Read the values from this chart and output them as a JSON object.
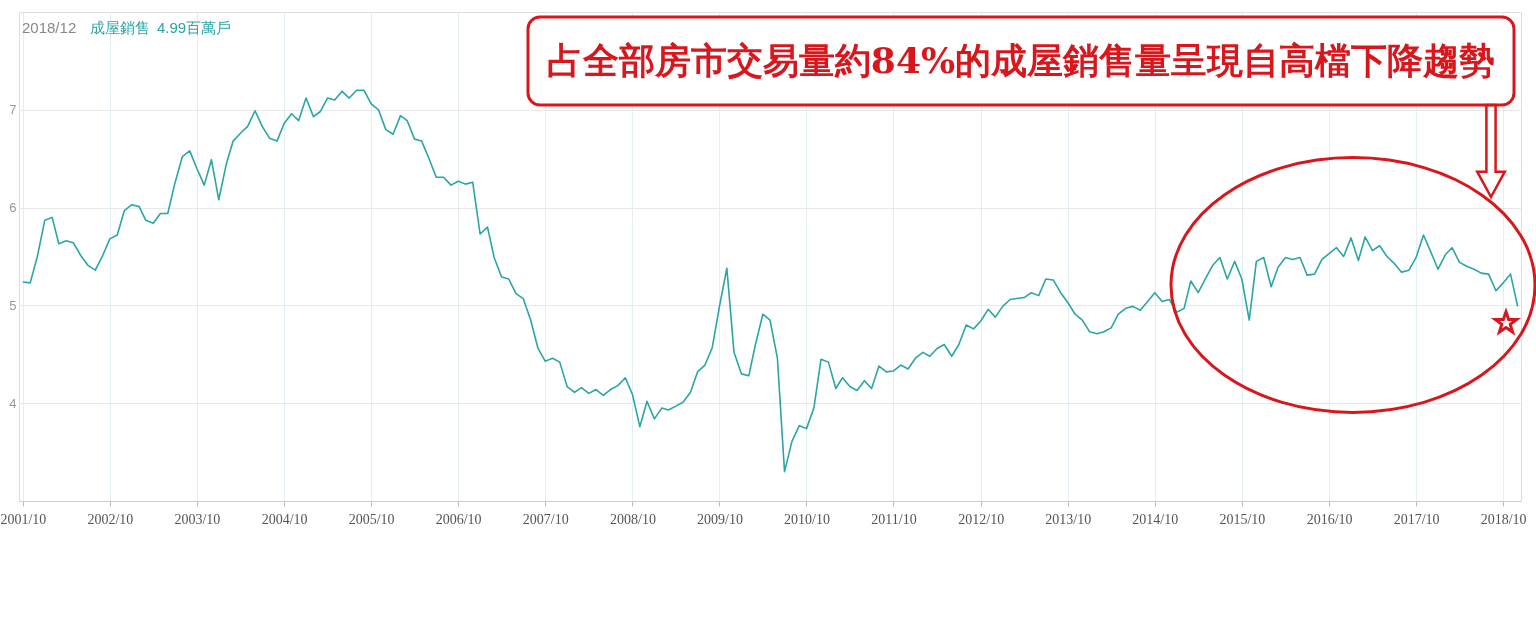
{
  "chart_data": {
    "type": "line",
    "annotations": [
      "2018/12",
      "4.99百萬戶",
      "占全部房市交易量約84%的成屋銷售量呈現自高檔下降趨勢"
    ],
    "x": [
      "2001-10",
      "2001-11",
      "2001-12",
      "2002-01",
      "2002-02",
      "2002-03",
      "2002-04",
      "2002-05",
      "2002-06",
      "2002-07",
      "2002-08",
      "2002-09",
      "2002-10",
      "2002-11",
      "2002-12",
      "2003-01",
      "2003-02",
      "2003-03",
      "2003-04",
      "2003-05",
      "2003-06",
      "2003-07",
      "2003-08",
      "2003-09",
      "2003-10",
      "2003-11",
      "2003-12",
      "2004-01",
      "2004-02",
      "2004-03",
      "2004-04",
      "2004-05",
      "2004-06",
      "2004-07",
      "2004-08",
      "2004-09",
      "2004-10",
      "2004-11",
      "2004-12",
      "2005-01",
      "2005-02",
      "2005-03",
      "2005-04",
      "2005-05",
      "2005-06",
      "2005-07",
      "2005-08",
      "2005-09",
      "2005-10",
      "2005-11",
      "2005-12",
      "2006-01",
      "2006-02",
      "2006-03",
      "2006-04",
      "2006-05",
      "2006-06",
      "2006-07",
      "2006-08",
      "2006-09",
      "2006-10",
      "2006-11",
      "2006-12",
      "2007-01",
      "2007-02",
      "2007-03",
      "2007-04",
      "2007-05",
      "2007-06",
      "2007-07",
      "2007-08",
      "2007-09",
      "2007-10",
      "2007-11",
      "2007-12",
      "2008-01",
      "2008-02",
      "2008-03",
      "2008-04",
      "2008-05",
      "2008-06",
      "2008-07",
      "2008-08",
      "2008-09",
      "2008-10",
      "2008-11",
      "2008-12",
      "2009-01",
      "2009-02",
      "2009-03",
      "2009-04",
      "2009-05",
      "2009-06",
      "2009-07",
      "2009-08",
      "2009-09",
      "2009-10",
      "2009-11",
      "2009-12",
      "2010-01",
      "2010-02",
      "2010-03",
      "2010-04",
      "2010-05",
      "2010-06",
      "2010-07",
      "2010-08",
      "2010-09",
      "2010-10",
      "2010-11",
      "2010-12",
      "2011-01",
      "2011-02",
      "2011-03",
      "2011-04",
      "2011-05",
      "2011-06",
      "2011-07",
      "2011-08",
      "2011-09",
      "2011-10",
      "2011-11",
      "2011-12",
      "2012-01",
      "2012-02",
      "2012-03",
      "2012-04",
      "2012-05",
      "2012-06",
      "2012-07",
      "2012-08",
      "2012-09",
      "2012-10",
      "2012-11",
      "2012-12",
      "2013-01",
      "2013-02",
      "2013-03",
      "2013-04",
      "2013-05",
      "2013-06",
      "2013-07",
      "2013-08",
      "2013-09",
      "2013-10",
      "2013-11",
      "2013-12",
      "2014-01",
      "2014-02",
      "2014-03",
      "2014-04",
      "2014-05",
      "2014-06",
      "2014-07",
      "2014-08",
      "2014-09",
      "2014-10",
      "2014-11",
      "2014-12",
      "2015-01",
      "2015-02",
      "2015-03",
      "2015-04",
      "2015-05",
      "2015-06",
      "2015-07",
      "2015-08",
      "2015-09",
      "2015-10",
      "2015-11",
      "2015-12",
      "2016-01",
      "2016-02",
      "2016-03",
      "2016-04",
      "2016-05",
      "2016-06",
      "2016-07",
      "2016-08",
      "2016-09",
      "2016-10",
      "2016-11",
      "2016-12",
      "2017-01",
      "2017-02",
      "2017-03",
      "2017-04",
      "2017-05",
      "2017-06",
      "2017-07",
      "2017-08",
      "2017-09",
      "2017-10",
      "2017-11",
      "2017-12",
      "2018-01",
      "2018-02",
      "2018-03",
      "2018-04",
      "2018-05",
      "2018-06",
      "2018-07",
      "2018-08",
      "2018-09",
      "2018-10",
      "2018-11",
      "2018-12"
    ],
    "series": [
      {
        "name": "成屋銷售",
        "color": "#2ba5a5",
        "values": [
          5.24,
          5.23,
          5.5,
          5.87,
          5.9,
          5.63,
          5.66,
          5.64,
          5.51,
          5.41,
          5.36,
          5.51,
          5.68,
          5.72,
          5.97,
          6.03,
          6.01,
          5.87,
          5.84,
          5.94,
          5.94,
          6.25,
          6.52,
          6.58,
          6.4,
          6.23,
          6.49,
          6.08,
          6.44,
          6.68,
          6.76,
          6.83,
          6.99,
          6.83,
          6.71,
          6.68,
          6.86,
          6.96,
          6.89,
          7.12,
          6.93,
          6.98,
          7.12,
          7.1,
          7.19,
          7.12,
          7.2,
          7.2,
          7.06,
          7.0,
          6.8,
          6.75,
          6.94,
          6.89,
          6.7,
          6.68,
          6.5,
          6.31,
          6.31,
          6.23,
          6.27,
          6.24,
          6.26,
          5.73,
          5.8,
          5.49,
          5.29,
          5.27,
          5.12,
          5.07,
          4.85,
          4.56,
          4.43,
          4.46,
          4.42,
          4.17,
          4.11,
          4.16,
          4.1,
          4.14,
          4.08,
          4.14,
          4.18,
          4.26,
          4.09,
          3.76,
          4.02,
          3.84,
          3.95,
          3.93,
          3.97,
          4.01,
          4.11,
          4.32,
          4.39,
          4.57,
          4.99,
          5.38,
          4.52,
          4.3,
          4.28,
          4.6,
          4.91,
          4.85,
          4.46,
          3.3,
          3.61,
          3.77,
          3.74,
          3.95,
          4.45,
          4.42,
          4.15,
          4.26,
          4.17,
          4.13,
          4.23,
          4.15,
          4.38,
          4.32,
          4.33,
          4.39,
          4.35,
          4.46,
          4.52,
          4.48,
          4.56,
          4.6,
          4.48,
          4.6,
          4.8,
          4.76,
          4.84,
          4.96,
          4.88,
          4.99,
          5.06,
          5.07,
          5.08,
          5.13,
          5.1,
          5.27,
          5.26,
          5.13,
          5.03,
          4.91,
          4.85,
          4.73,
          4.71,
          4.73,
          4.77,
          4.91,
          4.97,
          4.99,
          4.95,
          5.04,
          5.13,
          5.04,
          5.06,
          4.93,
          4.97,
          5.25,
          5.13,
          5.27,
          5.41,
          5.49,
          5.27,
          5.45,
          5.27,
          4.85,
          5.45,
          5.49,
          5.19,
          5.39,
          5.49,
          5.47,
          5.49,
          5.31,
          5.32,
          5.47,
          5.53,
          5.59,
          5.5,
          5.69,
          5.46,
          5.7,
          5.56,
          5.61,
          5.5,
          5.43,
          5.34,
          5.36,
          5.49,
          5.72,
          5.55,
          5.37,
          5.52,
          5.59,
          5.44,
          5.4,
          5.37,
          5.33,
          5.32,
          5.15,
          5.23,
          5.32,
          4.99
        ]
      }
    ],
    "xlim": [
      "2001-09-15",
      "2018-12-15"
    ],
    "xticks": [
      {
        "value": "2001-10",
        "label": "2001/10"
      },
      {
        "value": "2002-10",
        "label": "2002/10"
      },
      {
        "value": "2003-10",
        "label": "2003/10"
      },
      {
        "value": "2004-10",
        "label": "2004/10"
      },
      {
        "value": "2005-10",
        "label": "2005/10"
      },
      {
        "value": "2006-10",
        "label": "2006/10"
      },
      {
        "value": "2007-10",
        "label": "2007/10"
      },
      {
        "value": "2008-10",
        "label": "2008/10"
      },
      {
        "value": "2009-10",
        "label": "2009/10"
      },
      {
        "value": "2010-10",
        "label": "2010/10"
      },
      {
        "value": "2011-10",
        "label": "2011/10"
      },
      {
        "value": "2012-10",
        "label": "2012/10"
      },
      {
        "value": "2013-10",
        "label": "2013/10"
      },
      {
        "value": "2014-10",
        "label": "2014/10"
      },
      {
        "value": "2015-10",
        "label": "2015/10"
      },
      {
        "value": "2016-10",
        "label": "2016/10"
      },
      {
        "value": "2017-10",
        "label": "2017/10"
      },
      {
        "value": "2018-10",
        "label": "2018/10"
      }
    ],
    "ylim": [
      3,
      8
    ],
    "yticks": [
      4,
      5,
      6,
      7
    ],
    "grid": true,
    "marker": "none",
    "line_style": "solid"
  }
}
